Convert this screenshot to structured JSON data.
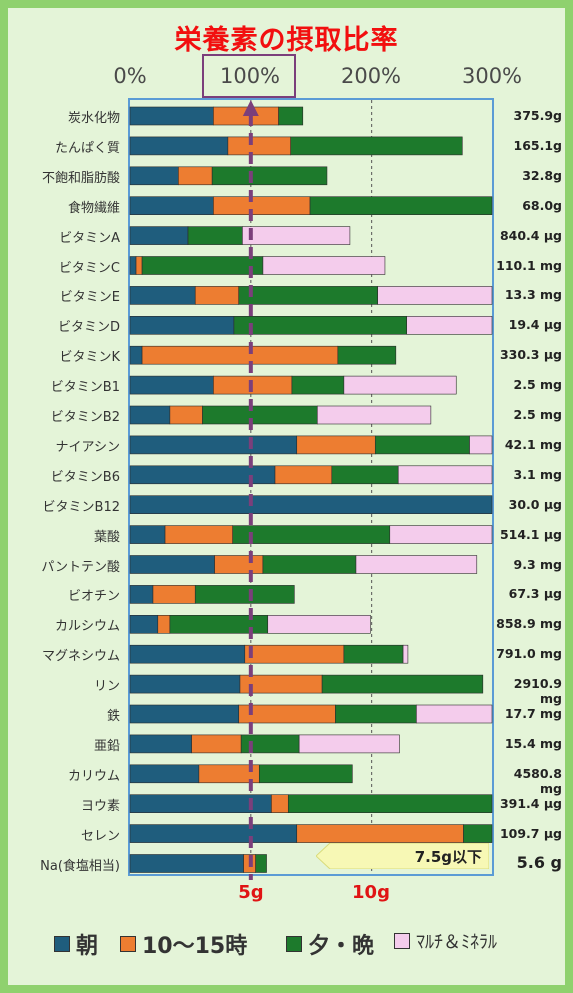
{
  "title": "栄養素の摂取比率",
  "axis_ticks": [
    "0%",
    "100%",
    "200%",
    "300%"
  ],
  "gram_ticks": [
    "5g",
    "10g"
  ],
  "note": "7.5g以下",
  "colors": {
    "morning": "#1f5d7d",
    "snack": "#ed7d31",
    "evening": "#1d7a2c",
    "supplement": "#f4ccec",
    "highlight": "#7b3f7b",
    "accent_red": "#e01414"
  },
  "legend": [
    {
      "key": "morning",
      "label": "朝"
    },
    {
      "key": "snack",
      "label": "10～15時"
    },
    {
      "key": "evening",
      "label": "夕・晩"
    },
    {
      "key": "supplement",
      "label": "ﾏﾙﾁ＆ﾐﾈﾗﾙ"
    }
  ],
  "chart_data": {
    "type": "bar",
    "orientation": "horizontal-stacked",
    "xlim": [
      0,
      300
    ],
    "unit": "%",
    "grid": "dashed vertical at 100% and 200%",
    "reference_line": 100,
    "series_names": [
      "朝",
      "10～15時",
      "夕・晩",
      "ﾏﾙﾁ＆ﾐﾈﾗﾙ"
    ],
    "rows": [
      {
        "name": "炭水化物",
        "total": "375.9g",
        "values": [
          69,
          54,
          20,
          0
        ]
      },
      {
        "name": "たんぱく質",
        "total": "165.1g",
        "values": [
          81,
          52,
          142,
          0
        ]
      },
      {
        "name": "不飽和脂肪酸",
        "total": "32.8g",
        "values": [
          40,
          28,
          95,
          0
        ]
      },
      {
        "name": "食物繊維",
        "total": "68.0g",
        "values": [
          69,
          80,
          153,
          0
        ]
      },
      {
        "name": "ビタミンA",
        "total": "840.4 µg",
        "values": [
          48,
          0,
          45,
          89
        ]
      },
      {
        "name": "ビタミンC",
        "total": "110.1 mg",
        "values": [
          5,
          5,
          100,
          101
        ]
      },
      {
        "name": "ビタミンE",
        "total": "13.3 mg",
        "values": [
          54,
          36,
          115,
          97
        ]
      },
      {
        "name": "ビタミンD",
        "total": "19.4 µg",
        "values": [
          86,
          0,
          143,
          71
        ]
      },
      {
        "name": "ビタミンK",
        "total": "330.3 µg",
        "values": [
          10,
          162,
          48,
          0
        ]
      },
      {
        "name": "ビタミンB1",
        "total": "2.5 mg",
        "values": [
          69,
          65,
          43,
          93
        ]
      },
      {
        "name": "ビタミンB2",
        "total": "2.5 mg",
        "values": [
          33,
          27,
          95,
          94
        ]
      },
      {
        "name": "ナイアシン",
        "total": "42.1 mg",
        "values": [
          138,
          65,
          78,
          21
        ]
      },
      {
        "name": "ビタミンB6",
        "total": "3.1 mg",
        "values": [
          120,
          47,
          55,
          80
        ]
      },
      {
        "name": "ビタミンB12",
        "total": "30.0 µg",
        "values": [
          302,
          0,
          0,
          0
        ]
      },
      {
        "name": "葉酸",
        "total": "514.1 µg",
        "values": [
          29,
          56,
          130,
          87
        ]
      },
      {
        "name": "パントテン酸",
        "total": "9.3 mg",
        "values": [
          70,
          40,
          77,
          100
        ]
      },
      {
        "name": "ビオチン",
        "total": "67.3 µg",
        "values": [
          19,
          35,
          82,
          0
        ]
      },
      {
        "name": "カルシウム",
        "total": "858.9 mg",
        "values": [
          23,
          10,
          81,
          85
        ]
      },
      {
        "name": "マグネシウム",
        "total": "791.0 mg",
        "values": [
          95,
          82,
          49,
          4
        ]
      },
      {
        "name": "リン",
        "total": "2910.9 mg",
        "values": [
          91,
          68,
          133,
          0
        ]
      },
      {
        "name": "鉄",
        "total": "17.7 mg",
        "values": [
          90,
          80,
          67,
          65
        ]
      },
      {
        "name": "亜鉛",
        "total": "15.4 mg",
        "values": [
          51,
          41,
          48,
          83
        ]
      },
      {
        "name": "カリウム",
        "total": "4580.8 mg",
        "values": [
          57,
          50,
          77,
          0
        ]
      },
      {
        "name": "ヨウ素",
        "total": "391.4 µg",
        "values": [
          117,
          14,
          171,
          0
        ]
      },
      {
        "name": "セレン",
        "total": "109.7 µg",
        "values": [
          138,
          138,
          26,
          0
        ]
      },
      {
        "name": "Na(食塩相当)",
        "total": "5.6 g",
        "values": [
          94,
          10,
          9,
          0
        ]
      }
    ]
  }
}
